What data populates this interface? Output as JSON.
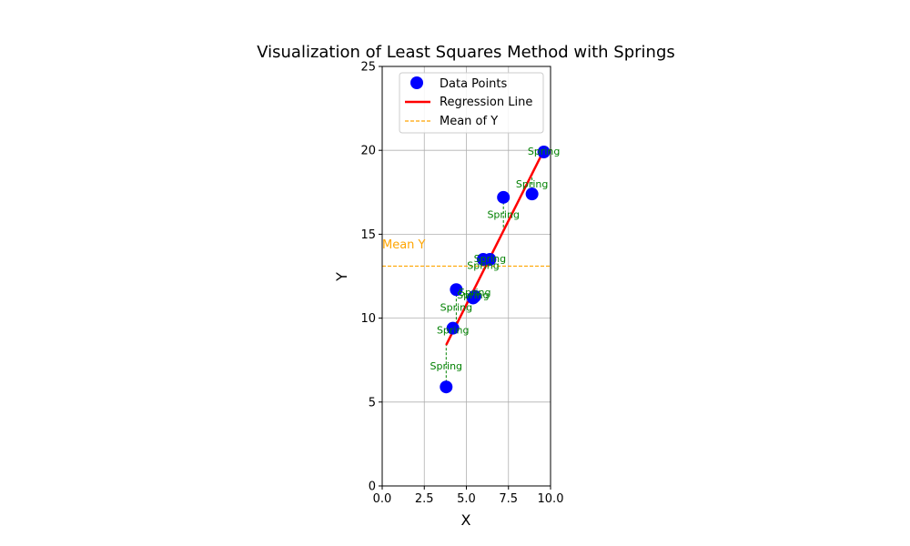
{
  "chart_data": {
    "type": "scatter",
    "title": "Visualization of Least Squares Method with Springs",
    "xlabel": "X",
    "ylabel": "Y",
    "xlim": [
      0,
      10
    ],
    "ylim": [
      0,
      25
    ],
    "xticks": [
      "0.0",
      "2.5",
      "5.0",
      "7.5",
      "10.0"
    ],
    "yticks": [
      "0",
      "5",
      "10",
      "15",
      "20",
      "25"
    ],
    "grid": true,
    "legend_position": "top-center",
    "colors": {
      "points": "#0000ff",
      "regression": "#ff0000",
      "mean": "#ffa500",
      "springs": "#008000"
    },
    "series": [
      {
        "name": "Data Points",
        "points": [
          {
            "x": 3.8,
            "y": 5.9
          },
          {
            "x": 4.2,
            "y": 9.4
          },
          {
            "x": 4.4,
            "y": 11.7
          },
          {
            "x": 5.4,
            "y": 11.2
          },
          {
            "x": 5.5,
            "y": 11.3
          },
          {
            "x": 6.0,
            "y": 13.5
          },
          {
            "x": 6.4,
            "y": 13.5
          },
          {
            "x": 7.2,
            "y": 17.2
          },
          {
            "x": 8.9,
            "y": 17.4
          },
          {
            "x": 9.6,
            "y": 19.9
          }
        ]
      },
      {
        "name": "Regression Line",
        "x": [
          3.8,
          9.6
        ],
        "y": [
          8.4,
          20.0
        ]
      },
      {
        "name": "Mean of Y",
        "y": 13.1
      }
    ],
    "spring_label": "Spring",
    "mean_annotation": "Mean Y"
  }
}
